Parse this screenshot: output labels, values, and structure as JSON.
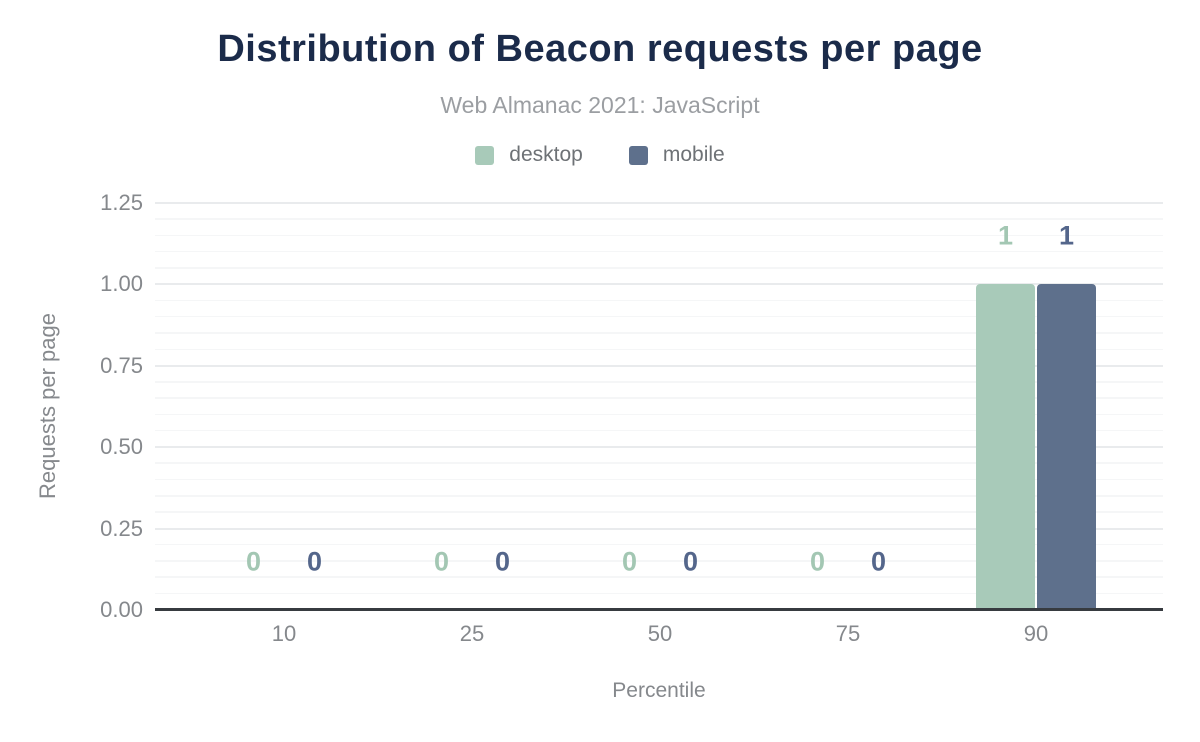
{
  "header": {
    "title": "Distribution of Beacon requests per page",
    "subtitle": "Web Almanac 2021: JavaScript"
  },
  "legend": [
    {
      "label": "desktop",
      "color": "#a8cab9"
    },
    {
      "label": "mobile",
      "color": "#5e708c"
    }
  ],
  "chart_data": {
    "type": "bar",
    "title": "Distribution of Beacon requests per page",
    "subtitle": "Web Almanac 2021: JavaScript",
    "categories": [
      "10",
      "25",
      "50",
      "75",
      "90"
    ],
    "series": [
      {
        "name": "desktop",
        "color": "#a8cab9",
        "label_color": "#a3c7b3",
        "values": [
          0,
          0,
          0,
          0,
          1
        ]
      },
      {
        "name": "mobile",
        "color": "#5e708c",
        "label_color": "#54668b",
        "values": [
          0,
          0,
          0,
          0,
          1
        ]
      }
    ],
    "xlabel": "Percentile",
    "ylabel": "Requests per page",
    "ylim": [
      0,
      1.25
    ],
    "y_major_step": 0.25,
    "y_minor_step": 0.05,
    "y_tick_labels": [
      "0.00",
      "0.25",
      "0.50",
      "0.75",
      "1.00",
      "1.25"
    ],
    "grid": true,
    "legend_position": "top",
    "axis_color": "#373b40",
    "text_color": "#85888c",
    "title_color": "#1b2b4a"
  }
}
